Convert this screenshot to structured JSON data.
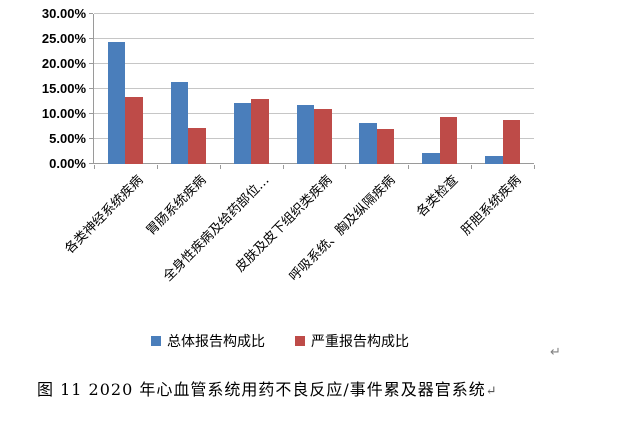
{
  "chart_data": {
    "type": "bar",
    "title": "",
    "xlabel": "",
    "ylabel": "",
    "categories": [
      "各类神经系统疾病",
      "胃肠系统疾病",
      "全身性疾病及给药部位…",
      "皮肤及皮下组织类疾病",
      "呼吸系统、胸及纵隔疾病",
      "各类检查",
      "肝胆系统疾病"
    ],
    "series": [
      {
        "name": "总体报告构成比",
        "color": "#4A7EBB",
        "values": [
          24.5,
          16.4,
          12.2,
          11.9,
          8.2,
          2.2,
          1.6
        ]
      },
      {
        "name": "严重报告构成比",
        "color": "#BE4B48",
        "values": [
          13.5,
          7.2,
          13.1,
          11.1,
          7.0,
          9.4,
          8.8
        ]
      }
    ],
    "ylim": [
      0,
      30
    ],
    "ytick_step": 5,
    "ytick_labels": [
      "0.00%",
      "5.00%",
      "10.00%",
      "15.00%",
      "20.00%",
      "25.00%",
      "30.00%"
    ],
    "grid": true,
    "legend_position": "bottom"
  },
  "colors": {
    "grid": "#c6c6c6",
    "axis": "#9a9a9a",
    "text": "#000000",
    "paragraph_mark": "#808080"
  },
  "marks": {
    "after_chart": "↵",
    "after_caption": "↵"
  },
  "caption": {
    "text": "图 11  2020 年心血管系统用药不良反应/事件累及器官系统"
  }
}
